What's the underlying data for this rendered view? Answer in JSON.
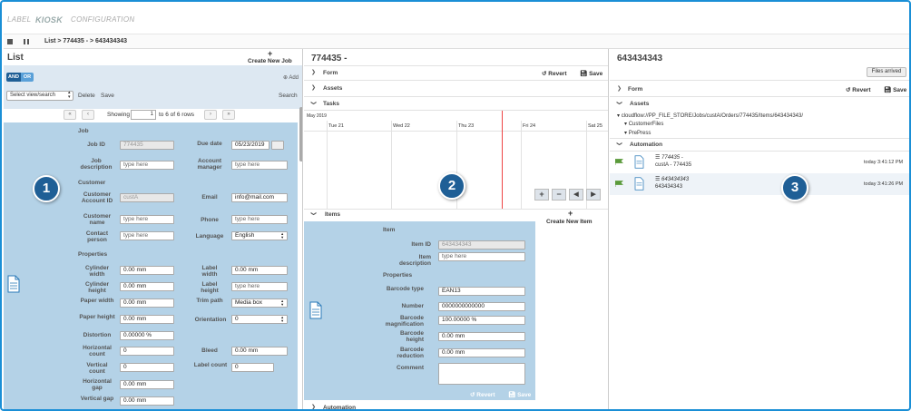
{
  "nav": {
    "label": "LABEL",
    "kiosk": "KIOSK",
    "configuration": "CONFIGURATION"
  },
  "breadcrumb": {
    "text": "List > 774435 -  > 643434343"
  },
  "list": {
    "title": "List",
    "create_job": "Create New Job",
    "and": "AND",
    "or": "OR",
    "add": "Add",
    "view_select": "Select view/search",
    "delete": "Delete",
    "save": "Save",
    "search": "Search",
    "pager": {
      "showing": "Showing",
      "page": "1",
      "range": "to 6 of 6 rows"
    },
    "form": {
      "sec_job": "Job",
      "job_id_label": "Job ID",
      "job_id_value": "774435",
      "due_label": "Due date",
      "due_value": "05/23/2019",
      "job_desc_label": "Job description",
      "job_desc_ph": "type here",
      "acct_mgr_label": "Account manager",
      "acct_mgr_ph": "type here",
      "sec_customer": "Customer",
      "cust_acct_label": "Customer Account ID",
      "cust_acct_value": "custA",
      "email_label": "Email",
      "email_value": "info@mail.com",
      "cust_name_label": "Customer name",
      "cust_name_ph": "type here",
      "phone_label": "Phone",
      "phone_ph": "type here",
      "contact_label": "Contact person",
      "contact_ph": "type here",
      "language_label": "Language",
      "language_value": "English",
      "sec_properties": "Properties",
      "cyl_w_label": "Cylinder width",
      "cyl_w_value": "0.00 mm",
      "label_w_label": "Label width",
      "label_w_value": "0.00 mm",
      "cyl_h_label": "Cylinder height",
      "cyl_h_value": "0.00 mm",
      "label_h_label": "Label height",
      "label_h_ph": "type here",
      "paper_w_label": "Paper width",
      "paper_w_value": "0.00 mm",
      "trim_label": "Trim path",
      "trim_value": "Media box",
      "paper_h_label": "Paper height",
      "paper_h_value": "0.00 mm",
      "orient_label": "Orientation",
      "orient_value": "0",
      "distortion_label": "Distortion",
      "distortion_value": "0.00000 %",
      "hcount_label": "Horizontal count",
      "hcount_value": "0",
      "bleed_label": "Bleed",
      "bleed_value": "0.00 mm",
      "vcount_label": "Vertical count",
      "vcount_value": "0",
      "lcount_label": "Label count",
      "lcount_value": "0",
      "hgap_label": "Horizontal gap",
      "hgap_value": "0.00 mm",
      "vgap_label": "Vertical gap",
      "vgap_value": "0.00 mm"
    }
  },
  "job": {
    "title": "774435 -",
    "revert": "Revert",
    "save": "Save",
    "form": "Form",
    "assets": "Assets",
    "tasks": "Tasks",
    "timeline": {
      "month": "May 2019",
      "days": [
        "Tue 21",
        "Wed 22",
        "Thu 23",
        "Fri 24",
        "Sat 25"
      ]
    },
    "items": "Items",
    "create_item": "Create New Item",
    "item": {
      "sec_item": "Item",
      "item_id_label": "Item ID",
      "item_id_value": "643434343",
      "item_desc_label": "Item description",
      "item_desc_ph": "type here",
      "sec_properties": "Properties",
      "barcode_type_label": "Barcode type",
      "barcode_type_value": "EAN13",
      "number_label": "Number",
      "number_value": "0000000000000",
      "barcode_mag_label": "Barcode magnification",
      "barcode_mag_value": "100.00000 %",
      "barcode_h_label": "Barcode height",
      "barcode_h_value": "0.00 mm",
      "barcode_red_label": "Barcode reduction",
      "barcode_red_value": "0.00 mm",
      "comment_label": "Comment",
      "revert": "Revert",
      "save": "Save"
    },
    "automation": "Automation"
  },
  "item": {
    "title": "643434343",
    "files_arrived": "Files arrived",
    "revert": "Revert",
    "save": "Save",
    "form": "Form",
    "assets": "Assets",
    "asset_path": "cloudflow://PP_FILE_STORE/Jobs/custA/Orders/774435/Items/643434343/",
    "asset_children": [
      "CustomerFiles",
      "PrePress"
    ],
    "automation": "Automation",
    "auto_rows": [
      {
        "title": "774435 -",
        "sub": "custA - 774435",
        "time": "today 3:41:12 PM"
      },
      {
        "title": "643434343",
        "sub": "643434343",
        "time": "today 3:41:26 PM"
      }
    ]
  },
  "badges": [
    "1",
    "2",
    "3"
  ],
  "colors": {
    "accent": "#1f5f96",
    "panel": "#b4d2e7",
    "border": "#1a8fd6",
    "today_line": "#e44444",
    "flag": "#5a9a3a"
  }
}
